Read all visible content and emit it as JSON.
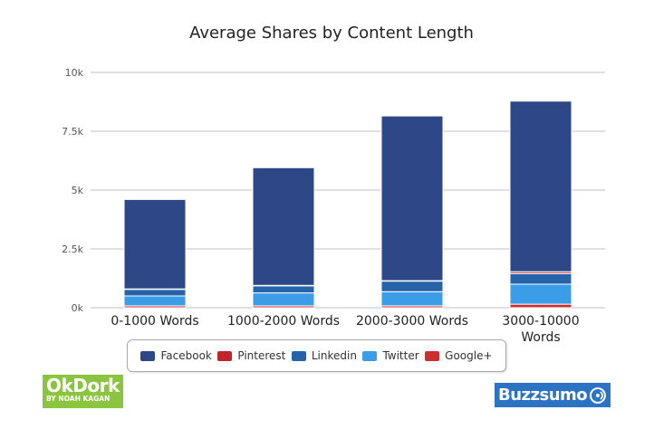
{
  "chart_data": {
    "type": "bar",
    "stacked": true,
    "title": "Average Shares by Content Length",
    "xlabel": "",
    "ylabel": "",
    "ylim": [
      0,
      10000
    ],
    "yticks": [
      {
        "value": 0,
        "label": "0k"
      },
      {
        "value": 2500,
        "label": "2.5k"
      },
      {
        "value": 5000,
        "label": "5k"
      },
      {
        "value": 7500,
        "label": "7.5k"
      },
      {
        "value": 10000,
        "label": "10k"
      }
    ],
    "categories": [
      [
        "0-1000 Words"
      ],
      [
        "1000-2000 Words"
      ],
      [
        "2000-3000 Words"
      ],
      [
        "3000-10000",
        "Words"
      ]
    ],
    "grid": true,
    "legend_position": "bottom",
    "series": [
      {
        "name": "Facebook",
        "color": "#2e4787",
        "values": [
          3800,
          5000,
          7000,
          7250
        ]
      },
      {
        "name": "Pinterest",
        "color": "#c0252b",
        "values": [
          20,
          20,
          20,
          80
        ]
      },
      {
        "name": "Linkedin",
        "color": "#2663a8",
        "values": [
          280,
          300,
          450,
          450
        ]
      },
      {
        "name": "Twitter",
        "color": "#3b9ce8",
        "values": [
          420,
          550,
          600,
          850
        ]
      },
      {
        "name": "Google+",
        "color": "#cc2f2f",
        "values": [
          80,
          80,
          80,
          150
        ]
      }
    ],
    "stack_order": [
      "Google+",
      "Twitter",
      "Linkedin",
      "Pinterest",
      "Facebook"
    ]
  },
  "logos": {
    "okdork": {
      "main": "OkDork",
      "sub": "BY NOAH KAGAN"
    },
    "buzzsumo": {
      "text": "Buzzsumo",
      "icon": "signal-icon"
    }
  }
}
